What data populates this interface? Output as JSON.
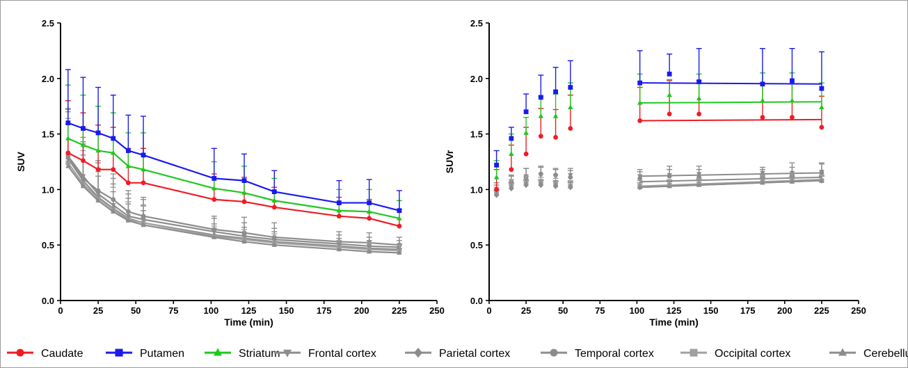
{
  "chart_data": [
    {
      "type": "line",
      "xlabel": "Time (min)",
      "ylabel": "SUV",
      "xlim": [
        0,
        250
      ],
      "ylim": [
        0.0,
        2.5
      ],
      "xticks": [
        "0",
        "25",
        "50",
        "75",
        "100",
        "125",
        "150",
        "175",
        "200",
        "225",
        "250"
      ],
      "yticks": [
        "0.0",
        "0.5",
        "1.0",
        "1.5",
        "2.0",
        "2.5"
      ],
      "x": [
        5,
        15,
        25,
        35,
        45,
        55,
        102,
        122,
        142,
        185,
        205,
        225
      ],
      "series": [
        {
          "name": "Caudate",
          "color": "#ee1c25",
          "marker": "circle",
          "values": [
            1.33,
            1.26,
            1.18,
            1.18,
            1.06,
            1.06,
            0.91,
            0.89,
            0.84,
            0.76,
            0.74,
            0.67
          ],
          "err": [
            0.47,
            0.43,
            0.4,
            0.38,
            0.31,
            0.31,
            0.23,
            0.22,
            0.18,
            0.17,
            0.17,
            0.15
          ]
        },
        {
          "name": "Putamen",
          "color": "#1a1aee",
          "marker": "square",
          "values": [
            1.6,
            1.55,
            1.51,
            1.46,
            1.35,
            1.31,
            1.1,
            1.08,
            0.98,
            0.88,
            0.88,
            0.81
          ],
          "err": [
            0.48,
            0.46,
            0.41,
            0.39,
            0.32,
            0.35,
            0.27,
            0.24,
            0.19,
            0.2,
            0.21,
            0.18
          ]
        },
        {
          "name": "Striatum",
          "color": "#1ec81e",
          "marker": "triangle",
          "values": [
            1.46,
            1.4,
            1.35,
            1.33,
            1.21,
            1.18,
            1.01,
            0.97,
            0.9,
            0.81,
            0.8,
            0.74
          ],
          "err": [
            0.48,
            0.45,
            0.4,
            0.36,
            0.3,
            0.33,
            0.24,
            0.24,
            0.2,
            0.19,
            0.2,
            0.16
          ]
        },
        {
          "name": "Frontal cortex",
          "color": "#8c8c8c",
          "marker": "tri-down",
          "values": [
            1.3,
            1.12,
            0.96,
            0.86,
            0.76,
            0.73,
            0.62,
            0.58,
            0.55,
            0.51,
            0.49,
            0.48
          ],
          "err": [
            0.42,
            0.35,
            0.28,
            0.24,
            0.2,
            0.18,
            0.12,
            0.12,
            0.1,
            0.08,
            0.08,
            0.06
          ]
        },
        {
          "name": "Parietal cortex",
          "color": "#8c8c8c",
          "marker": "diamond",
          "values": [
            1.28,
            1.08,
            0.93,
            0.83,
            0.74,
            0.7,
            0.59,
            0.56,
            0.53,
            0.49,
            0.47,
            0.46
          ],
          "err": [
            0.42,
            0.33,
            0.26,
            0.22,
            0.18,
            0.16,
            0.1,
            0.1,
            0.09,
            0.07,
            0.07,
            0.05
          ]
        },
        {
          "name": "Temporal cortex",
          "color": "#8c8c8c",
          "marker": "circle",
          "values": [
            1.3,
            1.1,
            0.99,
            0.91,
            0.8,
            0.76,
            0.64,
            0.61,
            0.57,
            0.53,
            0.52,
            0.5
          ],
          "err": [
            0.43,
            0.33,
            0.27,
            0.23,
            0.19,
            0.17,
            0.12,
            0.14,
            0.13,
            0.09,
            0.09,
            0.07
          ]
        },
        {
          "name": "Occipital cortex",
          "color": "#a0a0a0",
          "marker": "square",
          "values": [
            1.24,
            1.05,
            0.92,
            0.82,
            0.73,
            0.7,
            0.58,
            0.55,
            0.52,
            0.48,
            0.46,
            0.45
          ],
          "err": [
            0.4,
            0.3,
            0.24,
            0.2,
            0.16,
            0.15,
            0.09,
            0.09,
            0.08,
            0.06,
            0.06,
            0.05
          ]
        },
        {
          "name": "Cerebellum",
          "color": "#8c8c8c",
          "marker": "triangle",
          "values": [
            1.21,
            1.03,
            0.9,
            0.8,
            0.72,
            0.68,
            0.57,
            0.53,
            0.5,
            0.46,
            0.44,
            0.43
          ],
          "err": [
            0.38,
            0.28,
            0.22,
            0.18,
            0.15,
            0.13,
            0.08,
            0.08,
            0.07,
            0.05,
            0.05,
            0.04
          ]
        }
      ]
    },
    {
      "type": "scatter",
      "xlabel": "Time (min)",
      "ylabel": "SUVr",
      "xlim": [
        0,
        250
      ],
      "ylim": [
        0.0,
        2.5
      ],
      "xticks": [
        "0",
        "25",
        "50",
        "75",
        "100",
        "125",
        "150",
        "175",
        "200",
        "225",
        "250"
      ],
      "yticks": [
        "0.0",
        "0.5",
        "1.0",
        "1.5",
        "2.0",
        "2.5"
      ],
      "x": [
        5,
        15,
        25,
        35,
        45,
        55,
        102,
        122,
        142,
        185,
        205,
        225
      ],
      "fit_range": [
        102,
        225
      ],
      "series": [
        {
          "name": "Caudate",
          "color": "#ee1c25",
          "marker": "circle",
          "values": [
            1.0,
            1.18,
            1.32,
            1.48,
            1.47,
            1.55,
            1.62,
            1.68,
            1.68,
            1.65,
            1.65,
            1.56
          ],
          "err": [
            0.18,
            0.22,
            0.24,
            0.25,
            0.25,
            0.3,
            0.3,
            0.3,
            0.3,
            0.3,
            0.3,
            0.28
          ],
          "fit": [
            1.62,
            1.63
          ]
        },
        {
          "name": "Putamen",
          "color": "#1a1aee",
          "marker": "square",
          "values": [
            1.22,
            1.46,
            1.7,
            1.83,
            1.88,
            1.92,
            1.96,
            2.04,
            1.97,
            1.95,
            1.98,
            1.91
          ],
          "err": [
            0.13,
            0.1,
            0.16,
            0.2,
            0.22,
            0.24,
            0.29,
            0.18,
            0.3,
            0.32,
            0.29,
            0.33
          ],
          "fit": [
            1.96,
            1.95
          ]
        },
        {
          "name": "Striatum",
          "color": "#1ec81e",
          "marker": "triangle",
          "values": [
            1.11,
            1.32,
            1.51,
            1.66,
            1.66,
            1.74,
            1.78,
            1.85,
            1.82,
            1.8,
            1.8,
            1.74
          ],
          "err": [
            0.15,
            0.18,
            0.14,
            0.18,
            0.2,
            0.22,
            0.26,
            0.14,
            0.22,
            0.25,
            0.25,
            0.22
          ],
          "fit": [
            1.78,
            1.79
          ]
        },
        {
          "name": "Frontal cortex",
          "color": "#8c8c8c",
          "marker": "tri-down",
          "values": [
            0.98,
            1.06,
            1.12,
            1.13,
            1.12,
            1.13,
            1.12,
            1.13,
            1.14,
            1.15,
            1.15,
            1.16
          ],
          "err": [
            0.06,
            0.06,
            0.07,
            0.07,
            0.06,
            0.06,
            0.06,
            0.08,
            0.07,
            0.05,
            0.09,
            0.08
          ],
          "fit": [
            1.12,
            1.15
          ]
        },
        {
          "name": "Parietal cortex",
          "color": "#8c8c8c",
          "marker": "diamond",
          "values": [
            0.95,
            1.01,
            1.04,
            1.04,
            1.03,
            1.02,
            1.02,
            1.04,
            1.05,
            1.07,
            1.08,
            1.08
          ],
          "err": [
            0.04,
            0.04,
            0.04,
            0.04,
            0.04,
            0.04,
            0.04,
            0.04,
            0.04,
            0.04,
            0.04,
            0.04
          ],
          "fit": [
            1.02,
            1.08
          ]
        },
        {
          "name": "Temporal cortex",
          "color": "#8c8c8c",
          "marker": "circle",
          "values": [
            1.0,
            1.07,
            1.11,
            1.14,
            1.13,
            1.11,
            1.1,
            1.12,
            1.11,
            1.12,
            1.13,
            1.15
          ],
          "err": [
            0.06,
            0.06,
            0.08,
            0.07,
            0.06,
            0.06,
            0.06,
            0.06,
            0.07,
            0.06,
            0.07,
            0.08
          ],
          "fit": [
            1.07,
            1.11
          ]
        },
        {
          "name": "Occipital cortex",
          "color": "#a0a0a0",
          "marker": "square",
          "values": [
            0.97,
            1.04,
            1.07,
            1.06,
            1.05,
            1.03,
            1.03,
            1.04,
            1.05,
            1.08,
            1.09,
            1.08
          ],
          "err": [
            0.05,
            0.05,
            0.05,
            0.05,
            0.05,
            0.05,
            0.05,
            0.05,
            0.05,
            0.05,
            0.05,
            0.05
          ],
          "fit": [
            1.03,
            1.09
          ]
        },
        {
          "name": "Cerebellum",
          "color": "#8c8c8c",
          "marker": "triangle",
          "values": [
            0.96,
            1.02,
            1.05,
            1.05,
            1.04,
            1.03,
            1.02,
            1.03,
            1.04,
            1.06,
            1.07,
            1.08
          ],
          "err": [
            0.04,
            0.04,
            0.04,
            0.04,
            0.04,
            0.04,
            0.04,
            0.04,
            0.04,
            0.04,
            0.04,
            0.04
          ],
          "fit": [
            1.02,
            1.08
          ]
        }
      ]
    }
  ],
  "legend": {
    "position": "bottom",
    "items": [
      "Caudate",
      "Putamen",
      "Striatum",
      "Frontal cortex",
      "Parietal cortex",
      "Temporal cortex",
      "Occipital cortex",
      "Cerebellum"
    ]
  }
}
